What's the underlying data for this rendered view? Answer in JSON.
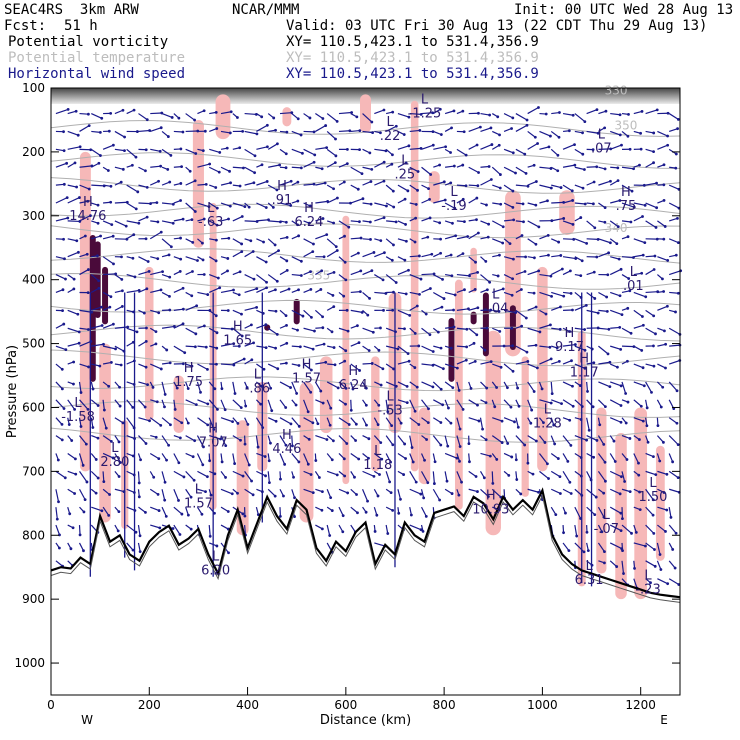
{
  "header": {
    "model": "SEAC4RS  3km ARW",
    "org": "NCAR/MMM",
    "init": "Init: 00 UTC Wed 28 Aug 13",
    "fcst_label": "Fcst:",
    "fcst_value": "51 h",
    "valid": "Valid: 03 UTC Fri 30 Aug 13 (22 CDT Thu 29 Aug 13)",
    "field1": "Potential vorticity",
    "field2": "Potential temperature",
    "field3": "Horizontal wind speed",
    "xy1": "XY= 110.5,423.1 to 531.4,356.9",
    "xy2": "XY= 110.5,423.1 to 531.4,356.9",
    "xy3": "XY= 110.5,423.1 to 531.4,356.9"
  },
  "colors": {
    "field1": "#000000",
    "field2": "#bdbdbd",
    "field3": "#1a1a8c",
    "pv_fill": "#f6b8b8",
    "pv_strong": "#4a0a3a",
    "theta": "#b0b0b0",
    "wind": "#1a1a8c",
    "terrain": "#000000"
  },
  "chart_data": {
    "type": "cross-section",
    "xlabel": "Distance (km)",
    "ylabel": "Pressure (hPa)",
    "xlim": [
      0,
      1280
    ],
    "ylim": [
      1050,
      100
    ],
    "x_ticks": [
      0,
      200,
      400,
      600,
      800,
      1000,
      1200
    ],
    "y_ticks": [
      100,
      200,
      300,
      400,
      500,
      600,
      700,
      800,
      900,
      1000
    ],
    "endpoints": [
      "W",
      "E"
    ],
    "theta_labels": [
      {
        "text": "350",
        "x": 1170,
        "p": 165
      },
      {
        "text": "340",
        "x": 1150,
        "p": 325
      },
      {
        "text": "335",
        "x": 545,
        "p": 400
      },
      {
        "text": "330",
        "x": 1150,
        "p": 110
      }
    ],
    "terrain": {
      "x": [
        0,
        20,
        40,
        60,
        80,
        100,
        120,
        140,
        160,
        180,
        200,
        220,
        240,
        260,
        280,
        300,
        320,
        340,
        360,
        380,
        400,
        420,
        440,
        460,
        480,
        500,
        520,
        540,
        560,
        580,
        600,
        620,
        640,
        660,
        680,
        700,
        720,
        740,
        760,
        780,
        800,
        820,
        840,
        860,
        880,
        900,
        920,
        940,
        960,
        980,
        1000,
        1020,
        1040,
        1060,
        1080,
        1100,
        1120,
        1140,
        1160,
        1180,
        1200,
        1220,
        1240,
        1260,
        1280
      ],
      "p": [
        855,
        850,
        852,
        835,
        845,
        770,
        810,
        800,
        830,
        840,
        810,
        795,
        785,
        815,
        805,
        790,
        830,
        860,
        800,
        760,
        820,
        780,
        740,
        770,
        790,
        745,
        760,
        820,
        840,
        810,
        825,
        795,
        780,
        845,
        815,
        830,
        780,
        800,
        810,
        765,
        760,
        755,
        770,
        740,
        750,
        775,
        740,
        760,
        745,
        760,
        730,
        800,
        830,
        845,
        855,
        860,
        865,
        870,
        875,
        880,
        885,
        890,
        893,
        895,
        897
      ]
    },
    "highs_lows": [
      {
        "t": "H",
        "v": "14.76",
        "x": 75,
        "p": 300
      },
      {
        "t": "L",
        "v": "-.63",
        "x": 325,
        "p": 310
      },
      {
        "t": "H",
        "v": ".91",
        "x": 470,
        "p": 275
      },
      {
        "t": "H",
        "v": "6.24",
        "x": 525,
        "p": 310
      },
      {
        "t": "L",
        "v": ".25",
        "x": 720,
        "p": 235
      },
      {
        "t": "L",
        "v": "-.19",
        "x": 820,
        "p": 285
      },
      {
        "t": "L",
        "v": ".22",
        "x": 690,
        "p": 175
      },
      {
        "t": "L",
        "v": "-1.25",
        "x": 760,
        "p": 140
      },
      {
        "t": "H",
        "v": ".75",
        "x": 1170,
        "p": 285
      },
      {
        "t": "L",
        "v": ".07",
        "x": 1120,
        "p": 195
      },
      {
        "t": "L",
        "v": ".01",
        "x": 1185,
        "p": 410
      },
      {
        "t": "L",
        "v": "-.04",
        "x": 905,
        "p": 445
      },
      {
        "t": "H",
        "v": "1.65",
        "x": 380,
        "p": 495
      },
      {
        "t": "H",
        "v": "1.75",
        "x": 280,
        "p": 560
      },
      {
        "t": "L",
        "v": "-.86",
        "x": 420,
        "p": 570
      },
      {
        "t": "H",
        "v": "1.57",
        "x": 520,
        "p": 555
      },
      {
        "t": "H",
        "v": "6.24",
        "x": 615,
        "p": 565
      },
      {
        "t": "L",
        "v": "-.53",
        "x": 690,
        "p": 605
      },
      {
        "t": "H",
        "v": "9.17",
        "x": 1055,
        "p": 505
      },
      {
        "t": "H",
        "v": "1.17",
        "x": 1085,
        "p": 545
      },
      {
        "t": "L",
        "v": "1.28",
        "x": 1010,
        "p": 625
      },
      {
        "t": "H",
        "v": "7.07",
        "x": 330,
        "p": 655
      },
      {
        "t": "H",
        "v": "4.46",
        "x": 480,
        "p": 665
      },
      {
        "t": "L",
        "v": "2.80",
        "x": 130,
        "p": 685
      },
      {
        "t": "L",
        "v": "1.57",
        "x": 300,
        "p": 750
      },
      {
        "t": "L",
        "v": "1.18",
        "x": 665,
        "p": 690
      },
      {
        "t": "L",
        "v": "-1.58",
        "x": 55,
        "p": 615
      },
      {
        "t": "H",
        "v": "10.93",
        "x": 895,
        "p": 760
      },
      {
        "t": "L",
        "v": "-.07",
        "x": 1130,
        "p": 790
      },
      {
        "t": "L",
        "v": "1.50",
        "x": 1225,
        "p": 740
      },
      {
        "t": "L",
        "v": "6.20",
        "x": 335,
        "p": 855
      },
      {
        "t": "L",
        "v": "-.23",
        "x": 1215,
        "p": 885
      },
      {
        "t": "L",
        "v": "6.31",
        "x": 1095,
        "p": 870
      }
    ]
  }
}
